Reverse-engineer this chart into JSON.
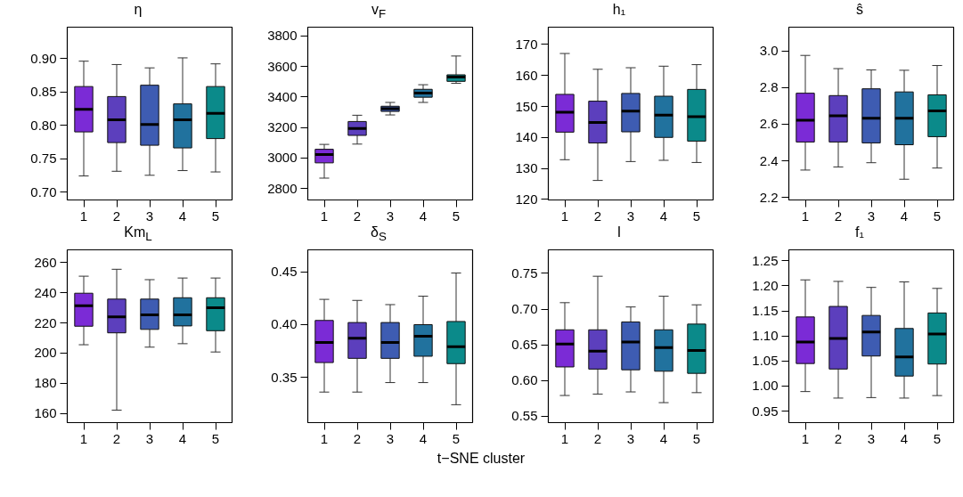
{
  "chart_data": [
    {
      "type": "box",
      "title": "η",
      "categories": [
        "1",
        "2",
        "3",
        "4",
        "5"
      ],
      "colors": [
        "#7b2bd6",
        "#5c3fbd",
        "#3e5cb2",
        "#21729e",
        "#0b8a8a"
      ],
      "ylim": [
        0.688,
        0.947
      ],
      "yticks": [
        {
          "value": 0.7,
          "label": "0.70"
        },
        0.75,
        {
          "value": 0.8,
          "label": "0.80"
        },
        0.85,
        {
          "value": 0.9,
          "label": "0.90"
        }
      ],
      "grid": false,
      "annotations": [
        "t−SNE cluster"
      ],
      "boxes": [
        {
          "low": 0.724,
          "q1": 0.79,
          "median": 0.824,
          "q3": 0.858,
          "high": 0.896
        },
        {
          "low": 0.731,
          "q1": 0.774,
          "median": 0.808,
          "q3": 0.843,
          "high": 0.891
        },
        {
          "low": 0.725,
          "q1": 0.77,
          "median": 0.801,
          "q3": 0.86,
          "high": 0.886
        },
        {
          "low": 0.732,
          "q1": 0.766,
          "median": 0.808,
          "q3": 0.832,
          "high": 0.901
        },
        {
          "low": 0.73,
          "q1": 0.78,
          "median": 0.818,
          "q3": 0.858,
          "high": 0.892
        }
      ]
    },
    {
      "type": "box",
      "title": "v$_{F}$",
      "categories": [
        "1",
        "2",
        "3",
        "4",
        "5"
      ],
      "colors": [
        "#7b2bd6",
        "#5c3fbd",
        "#3e5cb2",
        "#21729e",
        "#0b8a8a"
      ],
      "ylim": [
        2725,
        3857
      ],
      "yticks": [
        2800,
        3000,
        3200,
        3400,
        3600,
        3800
      ],
      "grid": false,
      "boxes": [
        {
          "low": 2868,
          "q1": 2968,
          "median": 3023,
          "q3": 3057,
          "high": 3089
        },
        {
          "low": 3091,
          "q1": 3148,
          "median": 3193,
          "q3": 3239,
          "high": 3280
        },
        {
          "low": 3282,
          "q1": 3305,
          "median": 3323,
          "q3": 3339,
          "high": 3364
        },
        {
          "low": 3364,
          "q1": 3398,
          "median": 3425,
          "q3": 3450,
          "high": 3480
        },
        {
          "low": 3489,
          "q1": 3502,
          "median": 3530,
          "q3": 3545,
          "high": 3668
        }
      ]
    },
    {
      "type": "box",
      "title": "h₁",
      "categories": [
        "1",
        "2",
        "3",
        "4",
        "5"
      ],
      "colors": [
        "#7b2bd6",
        "#5c3fbd",
        "#3e5cb2",
        "#21729e",
        "#0b8a8a"
      ],
      "ylim": [
        119.8,
        175.6
      ],
      "yticks": [
        120,
        130,
        140,
        150,
        160,
        170
      ],
      "grid": false,
      "boxes": [
        {
          "low": 132.8,
          "q1": 141.7,
          "median": 148.1,
          "q3": 153.9,
          "high": 167.1
        },
        {
          "low": 126.1,
          "q1": 138.2,
          "median": 144.8,
          "q3": 151.7,
          "high": 162.0
        },
        {
          "low": 132.2,
          "q1": 141.8,
          "median": 148.5,
          "q3": 154.2,
          "high": 162.5
        },
        {
          "low": 132.6,
          "q1": 140.0,
          "median": 147.2,
          "q3": 153.3,
          "high": 163.0
        },
        {
          "low": 131.9,
          "q1": 138.8,
          "median": 146.7,
          "q3": 155.5,
          "high": 163.5
        }
      ]
    },
    {
      "type": "box",
      "title": "ŝ",
      "categories": [
        "1",
        "2",
        "3",
        "4",
        "5"
      ],
      "colors": [
        "#7b2bd6",
        "#5c3fbd",
        "#3e5cb2",
        "#21729e",
        "#0b8a8a"
      ],
      "ylim": [
        2.187,
        3.129
      ],
      "yticks": [
        2.2,
        2.4,
        2.6,
        2.8,
        {
          "value": 3,
          "label": "3.0"
        }
      ],
      "grid": false,
      "boxes": [
        {
          "low": 2.35,
          "q1": 2.503,
          "median": 2.621,
          "q3": 2.769,
          "high": 2.975
        },
        {
          "low": 2.367,
          "q1": 2.503,
          "median": 2.646,
          "q3": 2.756,
          "high": 2.903
        },
        {
          "low": 2.39,
          "q1": 2.498,
          "median": 2.632,
          "q3": 2.793,
          "high": 2.896
        },
        {
          "low": 2.3,
          "q1": 2.488,
          "median": 2.632,
          "q3": 2.776,
          "high": 2.894
        },
        {
          "low": 2.361,
          "q1": 2.532,
          "median": 2.673,
          "q3": 2.76,
          "high": 2.92
        }
      ]
    },
    {
      "type": "box",
      "title": "Km$_{L}$",
      "categories": [
        "1",
        "2",
        "3",
        "4",
        "5"
      ],
      "colors": [
        "#7b2bd6",
        "#5c3fbd",
        "#3e5cb2",
        "#21729e",
        "#0b8a8a"
      ],
      "ylim": [
        153.8,
        268.5
      ],
      "yticks": [
        160,
        180,
        200,
        220,
        240,
        260
      ],
      "grid": false,
      "boxes": [
        {
          "low": 205.5,
          "q1": 217.8,
          "median": 231.4,
          "q3": 239.7,
          "high": 251.0
        },
        {
          "low": 162.1,
          "q1": 213.4,
          "median": 224.0,
          "q3": 235.8,
          "high": 255.6
        },
        {
          "low": 203.9,
          "q1": 215.7,
          "median": 225.4,
          "q3": 235.8,
          "high": 248.7
        },
        {
          "low": 206.2,
          "q1": 218.0,
          "median": 225.4,
          "q3": 236.7,
          "high": 249.8
        },
        {
          "low": 200.7,
          "q1": 214.8,
          "median": 230.0,
          "q3": 236.7,
          "high": 249.8
        }
      ]
    },
    {
      "type": "box",
      "title": "δ$_{S}$",
      "categories": [
        "1",
        "2",
        "3",
        "4",
        "5"
      ],
      "colors": [
        "#7b2bd6",
        "#5c3fbd",
        "#3e5cb2",
        "#21729e",
        "#0b8a8a"
      ],
      "ylim": [
        0.307,
        0.471
      ],
      "yticks": [
        0.35,
        {
          "value": 0.4,
          "label": "0.40"
        },
        0.45
      ],
      "grid": false,
      "boxes": [
        {
          "low": 0.336,
          "q1": 0.364,
          "median": 0.383,
          "q3": 0.404,
          "high": 0.424
        },
        {
          "low": 0.336,
          "q1": 0.368,
          "median": 0.387,
          "q3": 0.402,
          "high": 0.423
        },
        {
          "low": 0.345,
          "q1": 0.368,
          "median": 0.383,
          "q3": 0.402,
          "high": 0.419
        },
        {
          "low": 0.345,
          "q1": 0.37,
          "median": 0.389,
          "q3": 0.4,
          "high": 0.427
        },
        {
          "low": 0.324,
          "q1": 0.363,
          "median": 0.379,
          "q3": 0.403,
          "high": 0.449
        }
      ]
    },
    {
      "type": "box",
      "title": "I",
      "categories": [
        "1",
        "2",
        "3",
        "4",
        "5"
      ],
      "colors": [
        "#7b2bd6",
        "#5c3fbd",
        "#3e5cb2",
        "#21729e",
        "#0b8a8a"
      ],
      "ylim": [
        0.541,
        0.783
      ],
      "yticks": [
        0.55,
        {
          "value": 0.6,
          "label": "0.60"
        },
        0.65,
        {
          "value": 0.7,
          "label": "0.70"
        },
        0.75
      ],
      "grid": false,
      "boxes": [
        {
          "low": 0.579,
          "q1": 0.619,
          "median": 0.651,
          "q3": 0.671,
          "high": 0.709
        },
        {
          "low": 0.581,
          "q1": 0.616,
          "median": 0.641,
          "q3": 0.671,
          "high": 0.746
        },
        {
          "low": 0.584,
          "q1": 0.615,
          "median": 0.654,
          "q3": 0.682,
          "high": 0.703
        },
        {
          "low": 0.569,
          "q1": 0.613,
          "median": 0.646,
          "q3": 0.671,
          "high": 0.718
        },
        {
          "low": 0.583,
          "q1": 0.61,
          "median": 0.642,
          "q3": 0.679,
          "high": 0.706
        }
      ]
    },
    {
      "type": "box",
      "title": "f₁",
      "categories": [
        "1",
        "2",
        "3",
        "4",
        "5"
      ],
      "colors": [
        "#7b2bd6",
        "#5c3fbd",
        "#3e5cb2",
        "#21729e",
        "#0b8a8a"
      ],
      "ylim": [
        0.927,
        1.272
      ],
      "yticks": [
        0.95,
        {
          "value": 1,
          "label": "1.00"
        },
        1.05,
        {
          "value": 1.1,
          "label": "1.10"
        },
        1.15,
        {
          "value": 1.2,
          "label": "1.20"
        },
        1.25
      ],
      "grid": false,
      "boxes": [
        {
          "low": 0.989,
          "q1": 1.045,
          "median": 1.088,
          "q3": 1.138,
          "high": 1.212
        },
        {
          "low": 0.976,
          "q1": 1.034,
          "median": 1.095,
          "q3": 1.159,
          "high": 1.209
        },
        {
          "low": 0.977,
          "q1": 1.06,
          "median": 1.108,
          "q3": 1.141,
          "high": 1.197
        },
        {
          "low": 0.976,
          "q1": 1.02,
          "median": 1.058,
          "q3": 1.115,
          "high": 1.208
        },
        {
          "low": 0.981,
          "q1": 1.044,
          "median": 1.104,
          "q3": 1.146,
          "high": 1.195
        }
      ]
    }
  ]
}
